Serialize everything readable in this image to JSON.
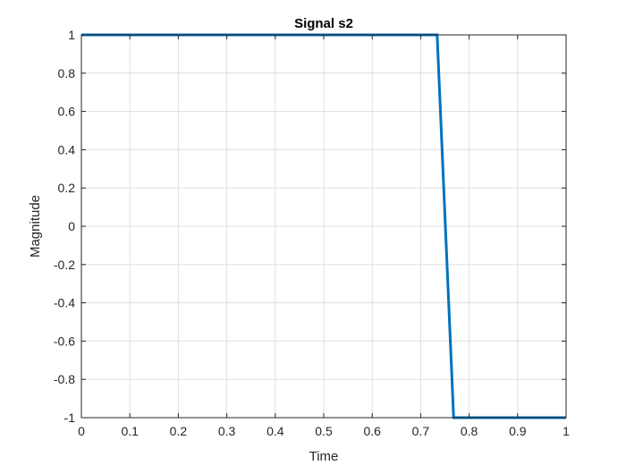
{
  "chart_data": {
    "type": "line",
    "title": "Signal s2",
    "xlabel": "Time",
    "ylabel": "Magnitude",
    "xlim": [
      0,
      1
    ],
    "ylim": [
      -1,
      1
    ],
    "x_ticks": [
      "0",
      "0.1",
      "0.2",
      "0.3",
      "0.4",
      "0.5",
      "0.6",
      "0.7",
      "0.8",
      "0.9",
      "1"
    ],
    "y_ticks": [
      "-1",
      "-0.8",
      "-0.6",
      "-0.4",
      "-0.2",
      "0",
      "0.2",
      "0.4",
      "0.6",
      "0.8",
      "1"
    ],
    "grid": true,
    "series": [
      {
        "color": "#0072BD",
        "x": [
          0,
          0.734,
          0.768,
          1
        ],
        "y": [
          1,
          1,
          -1,
          -1
        ]
      }
    ]
  }
}
